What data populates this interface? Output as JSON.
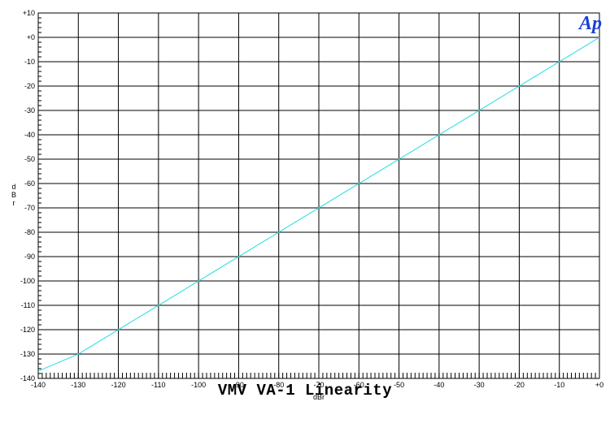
{
  "chart_data": {
    "type": "line",
    "title": "VMV VA-1 Linearity",
    "xlabel": "dBr",
    "ylabel": "dBr",
    "xlim": [
      -140,
      0
    ],
    "ylim": [
      -140,
      10
    ],
    "grid": true,
    "x_ticks": [
      -140,
      -130,
      -120,
      -110,
      -100,
      -90,
      -80,
      -70,
      -60,
      -50,
      -40,
      -30,
      -20,
      -10,
      0
    ],
    "x_tick_labels": [
      "-140",
      "-130",
      "-120",
      "-110",
      "-100",
      "-90",
      "-80",
      "-70",
      "-60",
      "-50",
      "-40",
      "-30",
      "-20",
      "-10",
      "+0"
    ],
    "y_ticks": [
      10,
      0,
      -10,
      -20,
      -30,
      -40,
      -50,
      -60,
      -70,
      -80,
      -90,
      -100,
      -110,
      -120,
      -130,
      -140
    ],
    "y_tick_labels": [
      "+10",
      "+0",
      "-10",
      "-20",
      "-30",
      "-40",
      "-50",
      "-60",
      "-70",
      "-80",
      "-90",
      "-100",
      "-110",
      "-120",
      "-130",
      "-140"
    ],
    "series": [
      {
        "color": "#40e0e8",
        "x": [
          -140,
          -130,
          -120,
          -110,
          -100,
          -90,
          -80,
          -70,
          -60,
          -50,
          -40,
          -30,
          -20,
          -10,
          0
        ],
        "y": [
          -137,
          -130,
          -120,
          -110,
          -100,
          -90,
          -80,
          -70,
          -60,
          -50,
          -40,
          -30,
          -20,
          -10,
          0
        ]
      }
    ],
    "logo_text": "Ap",
    "logo_color": "#1a3fd6",
    "trace_color": "#40e0e8"
  }
}
